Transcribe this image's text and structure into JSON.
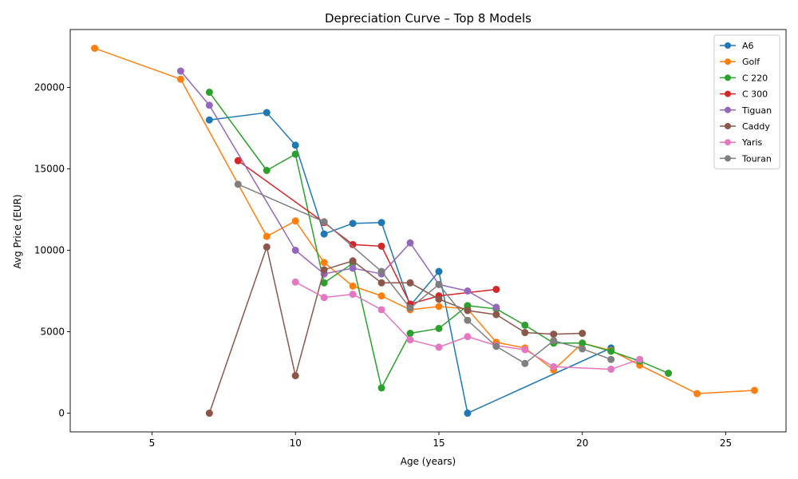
{
  "chart_data": {
    "type": "line",
    "title": "Depreciation Curve – Top 8 Models",
    "xlabel": "Age (years)",
    "ylabel": "Avg Price (EUR)",
    "xlim": [
      2.15,
      27.1
    ],
    "ylim": [
      -1150,
      23550
    ],
    "xticks": [
      5,
      10,
      15,
      20,
      25
    ],
    "yticks": [
      0,
      5000,
      10000,
      15000,
      20000
    ],
    "grid": false,
    "legend_position": "top-right",
    "series": [
      {
        "name": "A6",
        "color": "#1f77b4",
        "points": [
          [
            7,
            18000
          ],
          [
            9,
            18450
          ],
          [
            10,
            16450
          ],
          [
            11,
            11000
          ],
          [
            12,
            11650
          ],
          [
            13,
            11700
          ],
          [
            14,
            6600
          ],
          [
            15,
            8700
          ],
          [
            16,
            0
          ],
          [
            21,
            4000
          ]
        ]
      },
      {
        "name": "Golf",
        "color": "#ff7f0e",
        "points": [
          [
            3,
            22400
          ],
          [
            6,
            20500
          ],
          [
            9,
            10850
          ],
          [
            10,
            11800
          ],
          [
            11,
            9250
          ],
          [
            12,
            7800
          ],
          [
            13,
            7200
          ],
          [
            14,
            6350
          ],
          [
            15,
            6550
          ],
          [
            16,
            6400
          ],
          [
            17,
            4350
          ],
          [
            18,
            4000
          ],
          [
            19,
            2650
          ],
          [
            20,
            4300
          ],
          [
            21,
            3850
          ],
          [
            22,
            2950
          ],
          [
            24,
            1200
          ],
          [
            26,
            1400
          ]
        ]
      },
      {
        "name": "C 220",
        "color": "#2ca02c",
        "points": [
          [
            7,
            19700
          ],
          [
            9,
            14900
          ],
          [
            10,
            15900
          ],
          [
            11,
            8000
          ],
          [
            12,
            9200
          ],
          [
            13,
            1550
          ],
          [
            14,
            4900
          ],
          [
            15,
            5200
          ],
          [
            16,
            6600
          ],
          [
            17,
            6400
          ],
          [
            18,
            5400
          ],
          [
            19,
            4300
          ],
          [
            20,
            4300
          ],
          [
            21,
            3800
          ],
          [
            22,
            3200
          ],
          [
            23,
            2450
          ]
        ]
      },
      {
        "name": "C 300",
        "color": "#d62728",
        "points": [
          [
            8,
            15500
          ],
          [
            11,
            11700
          ],
          [
            12,
            10350
          ],
          [
            13,
            10250
          ],
          [
            14,
            6700
          ],
          [
            15,
            7200
          ],
          [
            17,
            7600
          ]
        ]
      },
      {
        "name": "Tiguan",
        "color": "#9467bd",
        "points": [
          [
            6,
            21000
          ],
          [
            7,
            18900
          ],
          [
            10,
            10000
          ],
          [
            11,
            8550
          ],
          [
            12,
            8900
          ],
          [
            13,
            8550
          ],
          [
            14,
            10450
          ],
          [
            15,
            7900
          ],
          [
            16,
            7500
          ],
          [
            17,
            6500
          ]
        ]
      },
      {
        "name": "Caddy",
        "color": "#8c564b",
        "points": [
          [
            7,
            0
          ],
          [
            9,
            10200
          ],
          [
            10,
            2300
          ],
          [
            11,
            8800
          ],
          [
            12,
            9350
          ],
          [
            13,
            8000
          ],
          [
            14,
            8000
          ],
          [
            15,
            7000
          ],
          [
            16,
            6300
          ],
          [
            17,
            6050
          ],
          [
            18,
            4950
          ],
          [
            19,
            4850
          ],
          [
            20,
            4900
          ]
        ]
      },
      {
        "name": "Yaris",
        "color": "#e377c2",
        "points": [
          [
            10,
            8050
          ],
          [
            11,
            7100
          ],
          [
            12,
            7300
          ],
          [
            13,
            6350
          ],
          [
            14,
            4500
          ],
          [
            15,
            4050
          ],
          [
            16,
            4700
          ],
          [
            17,
            4150
          ],
          [
            18,
            3900
          ],
          [
            19,
            2850
          ],
          [
            21,
            2700
          ],
          [
            22,
            3300
          ]
        ]
      },
      {
        "name": "Touran",
        "color": "#7f7f7f",
        "points": [
          [
            8,
            14050
          ],
          [
            11,
            11750
          ],
          [
            13,
            8700
          ],
          [
            14,
            6450
          ],
          [
            15,
            7900
          ],
          [
            16,
            5700
          ],
          [
            17,
            4100
          ],
          [
            18,
            3050
          ],
          [
            19,
            4450
          ],
          [
            20,
            3950
          ],
          [
            21,
            3300
          ]
        ]
      }
    ]
  }
}
